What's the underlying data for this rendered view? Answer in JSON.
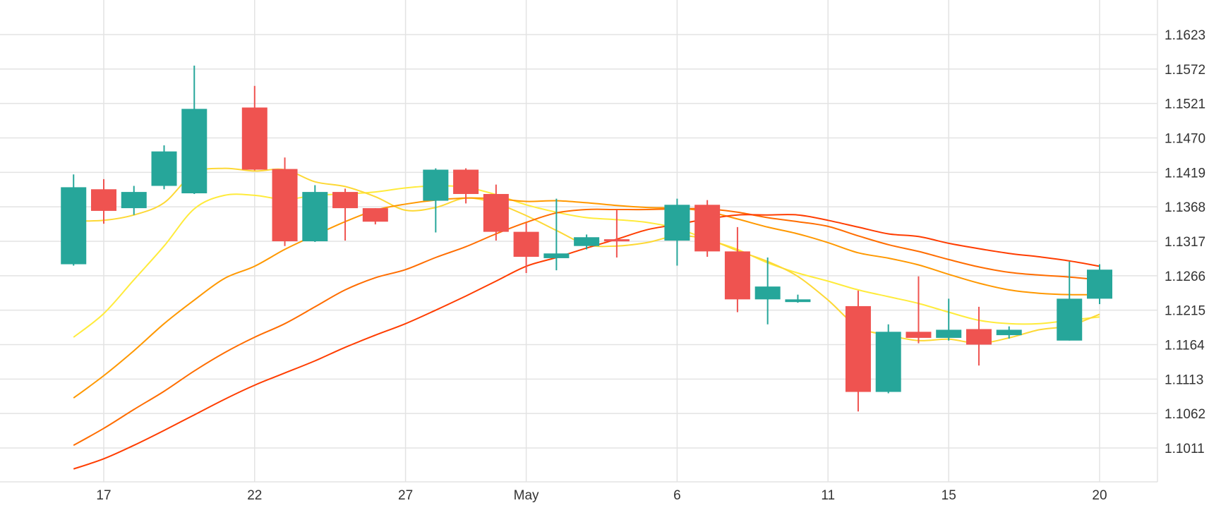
{
  "chart_data": {
    "type": "candlestick",
    "title": "",
    "xlabel": "",
    "ylabel": "",
    "ylim": [
      1.096,
      1.1674
    ],
    "grid": true,
    "legend": "none",
    "colors": {
      "up": "#26a69a",
      "down": "#ef5350"
    },
    "x_ticks": [
      {
        "date": "2024-04-17",
        "label": "17"
      },
      {
        "date": "2024-04-22",
        "label": "22"
      },
      {
        "date": "2024-04-27",
        "label": "27"
      },
      {
        "date": "2024-05-01",
        "label": "May"
      },
      {
        "date": "2024-05-06",
        "label": "6"
      },
      {
        "date": "2024-05-11",
        "label": "11"
      },
      {
        "date": "2024-05-15",
        "label": "15"
      },
      {
        "date": "2024-05-20",
        "label": "20"
      }
    ],
    "y_ticks": [
      {
        "value": 1.1623,
        "label": "1.1623"
      },
      {
        "value": 1.1572,
        "label": "1.1572"
      },
      {
        "value": 1.1521,
        "label": "1.1521"
      },
      {
        "value": 1.147,
        "label": "1.1470"
      },
      {
        "value": 1.1419,
        "label": "1.1419"
      },
      {
        "value": 1.1368,
        "label": "1.1368"
      },
      {
        "value": 1.1317,
        "label": "1.1317"
      },
      {
        "value": 1.1266,
        "label": "1.1266"
      },
      {
        "value": 1.1215,
        "label": "1.1215"
      },
      {
        "value": 1.1164,
        "label": "1.1164"
      },
      {
        "value": 1.1113,
        "label": "1.1113"
      },
      {
        "value": 1.1062,
        "label": "1.1062"
      },
      {
        "value": 1.1011,
        "label": "1.1011"
      }
    ],
    "candles": [
      {
        "date": "2024-04-16",
        "open": 1.1283,
        "high": 1.1416,
        "low": 1.1281,
        "close": 1.1397
      },
      {
        "date": "2024-04-17",
        "open": 1.1394,
        "high": 1.1409,
        "low": 1.1343,
        "close": 1.1362
      },
      {
        "date": "2024-04-18",
        "open": 1.1366,
        "high": 1.1399,
        "low": 1.1356,
        "close": 1.139
      },
      {
        "date": "2024-04-19",
        "open": 1.1399,
        "high": 1.1459,
        "low": 1.1394,
        "close": 1.145
      },
      {
        "date": "2024-04-20",
        "open": 1.1388,
        "high": 1.1577,
        "low": 1.1387,
        "close": 1.1513
      },
      {
        "date": "2024-04-22",
        "open": 1.1515,
        "high": 1.1547,
        "low": 1.1422,
        "close": 1.1423
      },
      {
        "date": "2024-04-23",
        "open": 1.1424,
        "high": 1.1441,
        "low": 1.131,
        "close": 1.1317
      },
      {
        "date": "2024-04-24",
        "open": 1.1317,
        "high": 1.14,
        "low": 1.1316,
        "close": 1.139
      },
      {
        "date": "2024-04-25",
        "open": 1.139,
        "high": 1.1395,
        "low": 1.1318,
        "close": 1.1366
      },
      {
        "date": "2024-04-26",
        "open": 1.1366,
        "high": 1.1366,
        "low": 1.1342,
        "close": 1.1346
      },
      {
        "date": "2024-04-28",
        "open": 1.1377,
        "high": 1.1425,
        "low": 1.133,
        "close": 1.1423
      },
      {
        "date": "2024-04-29",
        "open": 1.1423,
        "high": 1.1425,
        "low": 1.1373,
        "close": 1.1387
      },
      {
        "date": "2024-04-30",
        "open": 1.1387,
        "high": 1.1401,
        "low": 1.1318,
        "close": 1.1331
      },
      {
        "date": "2024-05-01",
        "open": 1.1331,
        "high": 1.1344,
        "low": 1.127,
        "close": 1.1294
      },
      {
        "date": "2024-05-02",
        "open": 1.1292,
        "high": 1.138,
        "low": 1.1274,
        "close": 1.1299
      },
      {
        "date": "2024-05-03",
        "open": 1.131,
        "high": 1.1327,
        "low": 1.1305,
        "close": 1.1323
      },
      {
        "date": "2024-05-04",
        "open": 1.132,
        "high": 1.1364,
        "low": 1.1293,
        "close": 1.1317
      },
      {
        "date": "2024-05-06",
        "open": 1.1318,
        "high": 1.138,
        "low": 1.1281,
        "close": 1.1371
      },
      {
        "date": "2024-05-07",
        "open": 1.1371,
        "high": 1.1378,
        "low": 1.1294,
        "close": 1.1302
      },
      {
        "date": "2024-05-08",
        "open": 1.1302,
        "high": 1.1338,
        "low": 1.1212,
        "close": 1.1231
      },
      {
        "date": "2024-05-09",
        "open": 1.1231,
        "high": 1.1293,
        "low": 1.1194,
        "close": 1.125
      },
      {
        "date": "2024-05-10",
        "open": 1.1227,
        "high": 1.1238,
        "low": 1.1226,
        "close": 1.1231
      },
      {
        "date": "2024-05-12",
        "open": 1.1221,
        "high": 1.1244,
        "low": 1.1065,
        "close": 1.1094
      },
      {
        "date": "2024-05-13",
        "open": 1.1094,
        "high": 1.1194,
        "low": 1.1092,
        "close": 1.1183
      },
      {
        "date": "2024-05-14",
        "open": 1.1183,
        "high": 1.1265,
        "low": 1.1166,
        "close": 1.1174
      },
      {
        "date": "2024-05-15",
        "open": 1.1174,
        "high": 1.1232,
        "low": 1.117,
        "close": 1.1186
      },
      {
        "date": "2024-05-16",
        "open": 1.1187,
        "high": 1.122,
        "low": 1.1133,
        "close": 1.1164
      },
      {
        "date": "2024-05-17",
        "open": 1.1178,
        "high": 1.1191,
        "low": 1.1173,
        "close": 1.1186
      },
      {
        "date": "2024-05-19",
        "open": 1.117,
        "high": 1.1287,
        "low": 1.117,
        "close": 1.1232
      },
      {
        "date": "2024-05-20",
        "open": 1.1232,
        "high": 1.1283,
        "low": 1.1224,
        "close": 1.1275
      }
    ],
    "lines": [
      {
        "color": "#ffeb3b",
        "points": [
          [
            "2024-04-16",
            1.1175
          ],
          [
            "2024-04-17",
            1.121
          ],
          [
            "2024-04-18",
            1.126
          ],
          [
            "2024-04-19",
            1.131
          ],
          [
            "2024-04-20",
            1.1365
          ],
          [
            "2024-04-21",
            1.1385
          ],
          [
            "2024-04-22",
            1.1385
          ],
          [
            "2024-04-23",
            1.1379
          ],
          [
            "2024-04-24",
            1.1385
          ],
          [
            "2024-04-25",
            1.1387
          ],
          [
            "2024-04-26",
            1.139
          ],
          [
            "2024-04-27",
            1.1396
          ],
          [
            "2024-04-28",
            1.1399
          ],
          [
            "2024-04-29",
            1.1397
          ],
          [
            "2024-04-30",
            1.1386
          ],
          [
            "2024-05-01",
            1.1371
          ],
          [
            "2024-05-02",
            1.136
          ],
          [
            "2024-05-03",
            1.1352
          ],
          [
            "2024-05-04",
            1.1349
          ],
          [
            "2024-05-05",
            1.1345
          ],
          [
            "2024-05-06",
            1.1336
          ],
          [
            "2024-05-07",
            1.132
          ],
          [
            "2024-05-08",
            1.1305
          ],
          [
            "2024-05-09",
            1.1285
          ],
          [
            "2024-05-10",
            1.127
          ],
          [
            "2024-05-11",
            1.1258
          ],
          [
            "2024-05-12",
            1.1245
          ],
          [
            "2024-05-13",
            1.1235
          ],
          [
            "2024-05-14",
            1.1225
          ],
          [
            "2024-05-15",
            1.1212
          ],
          [
            "2024-05-16",
            1.12
          ],
          [
            "2024-05-17",
            1.1195
          ],
          [
            "2024-05-18",
            1.1195
          ],
          [
            "2024-05-19",
            1.12
          ],
          [
            "2024-05-20",
            1.1205
          ]
        ]
      },
      {
        "color": "#fdd835",
        "points": [
          [
            "2024-04-16",
            1.1347
          ],
          [
            "2024-04-17",
            1.1348
          ],
          [
            "2024-04-18",
            1.1356
          ],
          [
            "2024-04-19",
            1.1374
          ],
          [
            "2024-04-20",
            1.1418
          ],
          [
            "2024-04-21",
            1.1425
          ],
          [
            "2024-04-22",
            1.1421
          ],
          [
            "2024-04-23",
            1.1423
          ],
          [
            "2024-04-24",
            1.1405
          ],
          [
            "2024-04-25",
            1.1398
          ],
          [
            "2024-04-26",
            1.1383
          ],
          [
            "2024-04-27",
            1.1363
          ],
          [
            "2024-04-28",
            1.1367
          ],
          [
            "2024-04-29",
            1.1381
          ],
          [
            "2024-04-30",
            1.1373
          ],
          [
            "2024-05-01",
            1.1355
          ],
          [
            "2024-05-02",
            1.1333
          ],
          [
            "2024-05-03",
            1.1312
          ],
          [
            "2024-05-04",
            1.131
          ],
          [
            "2024-05-05",
            1.1315
          ],
          [
            "2024-05-06",
            1.1325
          ],
          [
            "2024-05-07",
            1.132
          ],
          [
            "2024-05-08",
            1.1303
          ],
          [
            "2024-05-09",
            1.1287
          ],
          [
            "2024-05-10",
            1.1265
          ],
          [
            "2024-05-11",
            1.123
          ],
          [
            "2024-05-12",
            1.119
          ],
          [
            "2024-05-13",
            1.1178
          ],
          [
            "2024-05-14",
            1.117
          ],
          [
            "2024-05-15",
            1.1172
          ],
          [
            "2024-05-16",
            1.1166
          ],
          [
            "2024-05-17",
            1.1174
          ],
          [
            "2024-05-18",
            1.1186
          ],
          [
            "2024-05-19",
            1.1192
          ],
          [
            "2024-05-20",
            1.1209
          ]
        ]
      },
      {
        "color": "#ff9800",
        "points": [
          [
            "2024-04-16",
            1.1085
          ],
          [
            "2024-04-17",
            1.1118
          ],
          [
            "2024-04-18",
            1.1155
          ],
          [
            "2024-04-19",
            1.1195
          ],
          [
            "2024-04-20",
            1.123
          ],
          [
            "2024-04-21",
            1.1262
          ],
          [
            "2024-04-22",
            1.128
          ],
          [
            "2024-04-23",
            1.1305
          ],
          [
            "2024-04-24",
            1.1326
          ],
          [
            "2024-04-25",
            1.1346
          ],
          [
            "2024-04-26",
            1.1363
          ],
          [
            "2024-04-27",
            1.1372
          ],
          [
            "2024-04-28",
            1.1378
          ],
          [
            "2024-04-29",
            1.1381
          ],
          [
            "2024-04-30",
            1.138
          ],
          [
            "2024-05-01",
            1.1376
          ],
          [
            "2024-05-02",
            1.1377
          ],
          [
            "2024-05-03",
            1.1374
          ],
          [
            "2024-05-04",
            1.137
          ],
          [
            "2024-05-05",
            1.1367
          ],
          [
            "2024-05-06",
            1.1366
          ],
          [
            "2024-05-07",
            1.1361
          ],
          [
            "2024-05-08",
            1.135
          ],
          [
            "2024-05-09",
            1.1338
          ],
          [
            "2024-05-10",
            1.1328
          ],
          [
            "2024-05-11",
            1.1315
          ],
          [
            "2024-05-12",
            1.13
          ],
          [
            "2024-05-13",
            1.1292
          ],
          [
            "2024-05-14",
            1.1282
          ],
          [
            "2024-05-15",
            1.1268
          ],
          [
            "2024-05-16",
            1.1255
          ],
          [
            "2024-05-17",
            1.1245
          ],
          [
            "2024-05-18",
            1.124
          ],
          [
            "2024-05-19",
            1.1238
          ],
          [
            "2024-05-20",
            1.1238
          ]
        ]
      },
      {
        "color": "#ff6d00",
        "points": [
          [
            "2024-04-16",
            1.1015
          ],
          [
            "2024-04-17",
            1.104
          ],
          [
            "2024-04-18",
            1.1068
          ],
          [
            "2024-04-19",
            1.1095
          ],
          [
            "2024-04-20",
            1.1125
          ],
          [
            "2024-04-21",
            1.1152
          ],
          [
            "2024-04-22",
            1.1175
          ],
          [
            "2024-04-23",
            1.1195
          ],
          [
            "2024-04-24",
            1.122
          ],
          [
            "2024-04-25",
            1.1245
          ],
          [
            "2024-04-26",
            1.1263
          ],
          [
            "2024-04-27",
            1.1275
          ],
          [
            "2024-04-28",
            1.1293
          ],
          [
            "2024-04-29",
            1.1309
          ],
          [
            "2024-04-30",
            1.1328
          ],
          [
            "2024-05-01",
            1.1345
          ],
          [
            "2024-05-02",
            1.1359
          ],
          [
            "2024-05-03",
            1.1364
          ],
          [
            "2024-05-04",
            1.1364
          ],
          [
            "2024-05-05",
            1.1364
          ],
          [
            "2024-05-06",
            1.1365
          ],
          [
            "2024-05-07",
            1.1365
          ],
          [
            "2024-05-08",
            1.136
          ],
          [
            "2024-05-09",
            1.1352
          ],
          [
            "2024-05-10",
            1.1346
          ],
          [
            "2024-05-11",
            1.1339
          ],
          [
            "2024-05-12",
            1.1325
          ],
          [
            "2024-05-13",
            1.1312
          ],
          [
            "2024-05-14",
            1.1302
          ],
          [
            "2024-05-15",
            1.129
          ],
          [
            "2024-05-16",
            1.1279
          ],
          [
            "2024-05-17",
            1.1271
          ],
          [
            "2024-05-18",
            1.1267
          ],
          [
            "2024-05-19",
            1.1264
          ],
          [
            "2024-05-20",
            1.126
          ]
        ]
      },
      {
        "color": "#ff3d00",
        "points": [
          [
            "2024-04-16",
            1.098
          ],
          [
            "2024-04-17",
            1.0995
          ],
          [
            "2024-04-18",
            1.1015
          ],
          [
            "2024-04-19",
            1.1037
          ],
          [
            "2024-04-20",
            1.106
          ],
          [
            "2024-04-21",
            1.1083
          ],
          [
            "2024-04-22",
            1.1104
          ],
          [
            "2024-04-23",
            1.1122
          ],
          [
            "2024-04-24",
            1.114
          ],
          [
            "2024-04-25",
            1.116
          ],
          [
            "2024-04-26",
            1.1178
          ],
          [
            "2024-04-27",
            1.1195
          ],
          [
            "2024-04-28",
            1.1215
          ],
          [
            "2024-04-29",
            1.1236
          ],
          [
            "2024-04-30",
            1.1258
          ],
          [
            "2024-05-01",
            1.128
          ],
          [
            "2024-05-02",
            1.1293
          ],
          [
            "2024-05-03",
            1.1307
          ],
          [
            "2024-05-04",
            1.132
          ],
          [
            "2024-05-05",
            1.1334
          ],
          [
            "2024-05-06",
            1.1342
          ],
          [
            "2024-05-07",
            1.135
          ],
          [
            "2024-05-08",
            1.1356
          ],
          [
            "2024-05-09",
            1.1356
          ],
          [
            "2024-05-10",
            1.1356
          ],
          [
            "2024-05-11",
            1.1348
          ],
          [
            "2024-05-12",
            1.1338
          ],
          [
            "2024-05-13",
            1.1328
          ],
          [
            "2024-05-14",
            1.1324
          ],
          [
            "2024-05-15",
            1.1314
          ],
          [
            "2024-05-16",
            1.1306
          ],
          [
            "2024-05-17",
            1.1299
          ],
          [
            "2024-05-18",
            1.1294
          ],
          [
            "2024-05-19",
            1.1288
          ],
          [
            "2024-05-20",
            1.128
          ]
        ]
      }
    ]
  }
}
